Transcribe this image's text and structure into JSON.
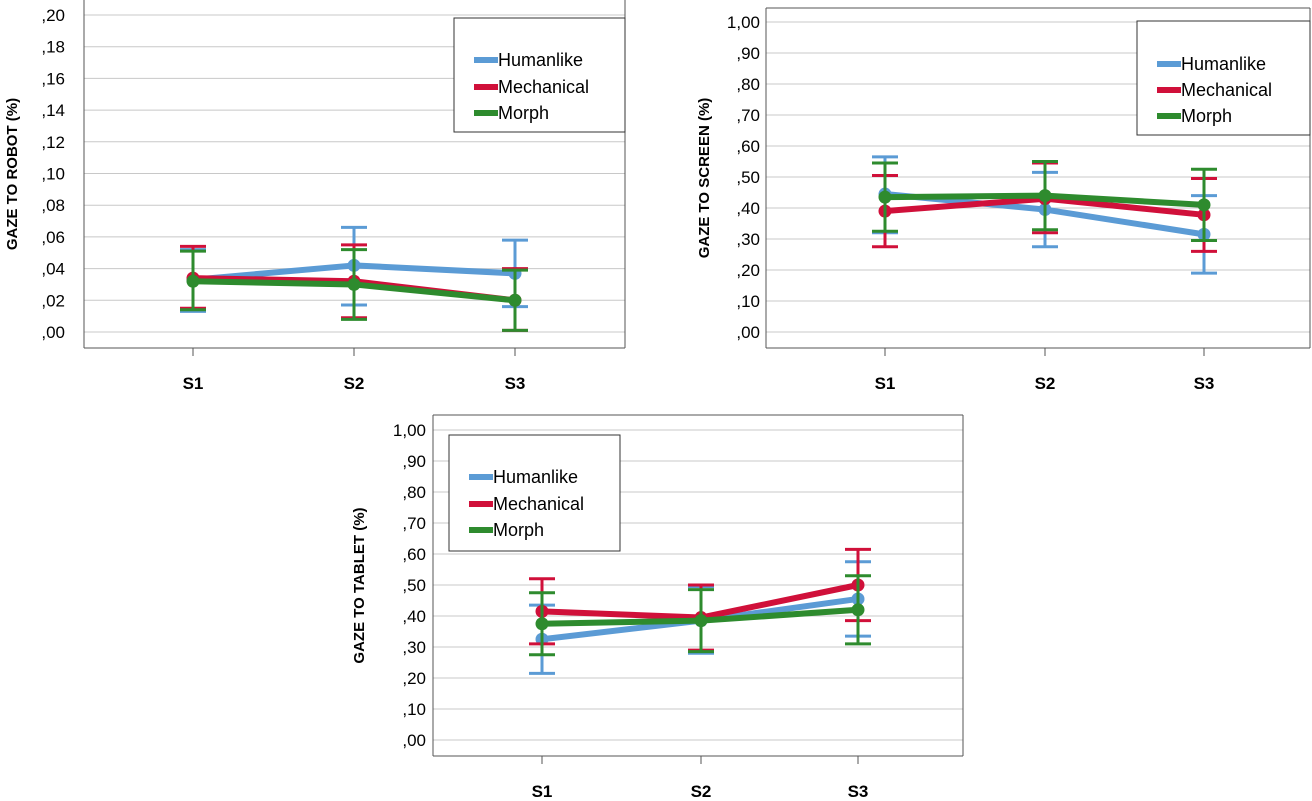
{
  "chart_data": [
    {
      "type": "line",
      "ylabel": "GAZE TO ROBOT (%)",
      "xlabel": "",
      "categories": [
        "S1",
        "S2",
        "S3"
      ],
      "ylim": [
        0,
        0.2
      ],
      "yticks": [
        ",00",
        ",02",
        ",04",
        ",06",
        ",08",
        ",10",
        ",12",
        ",14",
        ",16",
        ",18",
        ",20"
      ],
      "grid": true,
      "legend": "top-right",
      "error_bars": true,
      "series": [
        {
          "name": "Humanlike",
          "color": "#5b9bd5",
          "values": [
            0.033,
            0.042,
            0.037
          ],
          "lower": [
            0.013,
            0.017,
            0.016
          ],
          "upper": [
            0.052,
            0.066,
            0.058
          ]
        },
        {
          "name": "Mechanical",
          "color": "#d0103a",
          "values": [
            0.034,
            0.032,
            0.02
          ],
          "lower": [
            0.015,
            0.009,
            0.001
          ],
          "upper": [
            0.054,
            0.055,
            0.04
          ]
        },
        {
          "name": "Morph",
          "color": "#2e8b2e",
          "values": [
            0.032,
            0.03,
            0.02
          ],
          "lower": [
            0.014,
            0.008,
            0.001
          ],
          "upper": [
            0.051,
            0.052,
            0.039
          ]
        }
      ]
    },
    {
      "type": "line",
      "ylabel": "GAZE TO SCREEN (%)",
      "xlabel": "",
      "categories": [
        "S1",
        "S2",
        "S3"
      ],
      "ylim": [
        0,
        1.0
      ],
      "yticks": [
        ",00",
        ",10",
        ",20",
        ",30",
        ",40",
        ",50",
        ",60",
        ",70",
        ",80",
        ",90",
        "1,00"
      ],
      "grid": true,
      "legend": "top-right",
      "error_bars": true,
      "series": [
        {
          "name": "Humanlike",
          "color": "#5b9bd5",
          "values": [
            0.445,
            0.395,
            0.315
          ],
          "lower": [
            0.32,
            0.275,
            0.19
          ],
          "upper": [
            0.565,
            0.515,
            0.44
          ]
        },
        {
          "name": "Mechanical",
          "color": "#d0103a",
          "values": [
            0.39,
            0.43,
            0.378
          ],
          "lower": [
            0.275,
            0.32,
            0.26
          ],
          "upper": [
            0.505,
            0.545,
            0.495
          ]
        },
        {
          "name": "Morph",
          "color": "#2e8b2e",
          "values": [
            0.435,
            0.44,
            0.41
          ],
          "lower": [
            0.325,
            0.33,
            0.295
          ],
          "upper": [
            0.545,
            0.55,
            0.525
          ]
        }
      ]
    },
    {
      "type": "line",
      "ylabel": "GAZE TO TABLET (%)",
      "xlabel": "",
      "categories": [
        "S1",
        "S2",
        "S3"
      ],
      "ylim": [
        0,
        1.0
      ],
      "yticks": [
        ",00",
        ",10",
        ",20",
        ",30",
        ",40",
        ",50",
        ",60",
        ",70",
        ",80",
        ",90",
        "1,00"
      ],
      "grid": true,
      "legend": "top-left",
      "error_bars": true,
      "series": [
        {
          "name": "Humanlike",
          "color": "#5b9bd5",
          "values": [
            0.325,
            0.385,
            0.455
          ],
          "lower": [
            0.215,
            0.28,
            0.335
          ],
          "upper": [
            0.435,
            0.495,
            0.575
          ]
        },
        {
          "name": "Mechanical",
          "color": "#d0103a",
          "values": [
            0.415,
            0.395,
            0.5
          ],
          "lower": [
            0.31,
            0.29,
            0.385
          ],
          "upper": [
            0.52,
            0.5,
            0.615
          ]
        },
        {
          "name": "Morph",
          "color": "#2e8b2e",
          "values": [
            0.375,
            0.385,
            0.42
          ],
          "lower": [
            0.275,
            0.285,
            0.31
          ],
          "upper": [
            0.475,
            0.485,
            0.53
          ]
        }
      ]
    }
  ]
}
